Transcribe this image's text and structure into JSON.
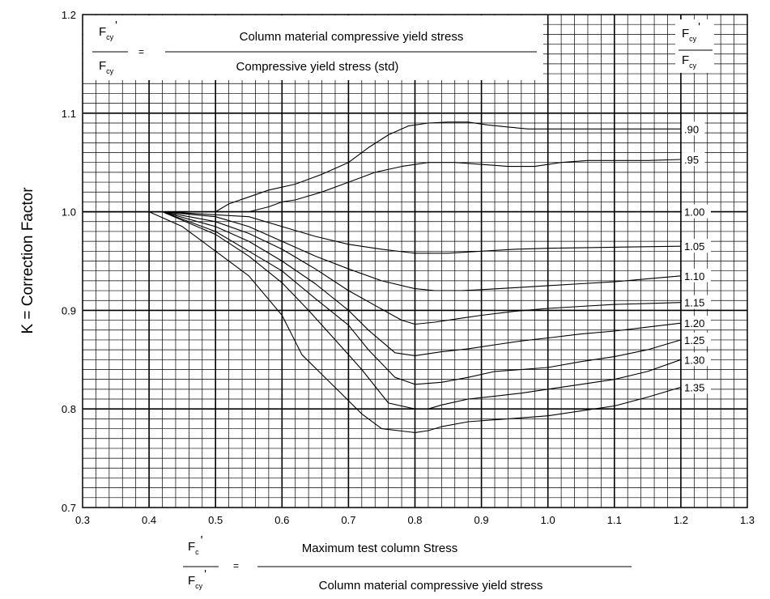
{
  "chart_data": {
    "type": "line",
    "title": "",
    "ylabel": "K = Correction Factor",
    "xlabel": "",
    "xlim": [
      0.3,
      1.3
    ],
    "ylim": [
      0.7,
      1.2
    ],
    "grid": true,
    "x_ticks": [
      "0.3",
      "0.4",
      "0.5",
      "0.6",
      "0.7",
      "0.8",
      "0.9",
      "1.0",
      "1.1",
      "1.2",
      "1.3"
    ],
    "y_ticks": [
      "0.7",
      "0.8",
      "0.9",
      "1.0",
      "1.1",
      "1.2"
    ],
    "top_formula": {
      "lhs_main": "F",
      "lhs_num_sub": "cy",
      "lhs_den_sub": "cy",
      "prime": "'",
      "equals": "=",
      "numerator": "Column material compressive yield stress",
      "denominator": "Compressive yield stress (std)"
    },
    "legend_header": {
      "main": "F",
      "num_sub": "cy",
      "den_sub": "cy",
      "prime": "'"
    },
    "bottom_formula": {
      "lhs_main": "F",
      "lhs_num_sub": "c",
      "lhs_den_sub": "cy",
      "prime": "'",
      "equals": "=",
      "numerator": "Maximum test column Stress",
      "denominator": "Column material compressive yield stress"
    },
    "series": [
      {
        "name": ".90",
        "x": [
          0.3,
          0.42,
          0.5,
          0.52,
          0.55,
          0.58,
          0.62,
          0.66,
          0.7,
          0.73,
          0.76,
          0.79,
          0.82,
          0.85,
          0.88,
          0.91,
          0.94,
          0.97,
          1.0,
          1.05,
          1.1,
          1.15,
          1.2
        ],
        "y": [
          1.0,
          1.0,
          1.0,
          1.008,
          1.015,
          1.022,
          1.028,
          1.038,
          1.05,
          1.065,
          1.078,
          1.087,
          1.09,
          1.091,
          1.091,
          1.088,
          1.086,
          1.084,
          1.084,
          1.084,
          1.084,
          1.084,
          1.084
        ]
      },
      {
        "name": ".95",
        "x": [
          0.3,
          0.42,
          0.55,
          0.58,
          0.6,
          0.62,
          0.66,
          0.7,
          0.74,
          0.78,
          0.82,
          0.86,
          0.9,
          0.94,
          0.98,
          1.02,
          1.06,
          1.1,
          1.15,
          1.2
        ],
        "y": [
          1.0,
          1.0,
          1.0,
          1.005,
          1.01,
          1.012,
          1.02,
          1.03,
          1.04,
          1.046,
          1.05,
          1.05,
          1.048,
          1.046,
          1.046,
          1.05,
          1.052,
          1.052,
          1.052,
          1.053
        ]
      },
      {
        "name": "1.00",
        "x": [
          0.3,
          1.2
        ],
        "y": [
          1.0,
          1.0
        ]
      },
      {
        "name": "1.05",
        "x": [
          0.3,
          0.42,
          0.55,
          0.6,
          0.65,
          0.7,
          0.75,
          0.8,
          0.85,
          0.9,
          0.95,
          1.0,
          1.1,
          1.2
        ],
        "y": [
          1.0,
          1.0,
          0.995,
          0.985,
          0.975,
          0.967,
          0.962,
          0.958,
          0.958,
          0.96,
          0.962,
          0.963,
          0.964,
          0.965
        ]
      },
      {
        "name": "1.10",
        "x": [
          0.3,
          0.42,
          0.5,
          0.55,
          0.6,
          0.65,
          0.7,
          0.75,
          0.8,
          0.83,
          0.87,
          0.9,
          0.95,
          1.0,
          1.05,
          1.1,
          1.15,
          1.2
        ],
        "y": [
          1.0,
          1.0,
          0.995,
          0.985,
          0.97,
          0.955,
          0.942,
          0.93,
          0.922,
          0.92,
          0.92,
          0.921,
          0.923,
          0.925,
          0.927,
          0.929,
          0.932,
          0.935
        ]
      },
      {
        "name": "1.15",
        "x": [
          0.3,
          0.42,
          0.5,
          0.55,
          0.6,
          0.65,
          0.7,
          0.74,
          0.78,
          0.8,
          0.83,
          0.87,
          0.9,
          0.95,
          1.0,
          1.05,
          1.1,
          1.15,
          1.2
        ],
        "y": [
          1.0,
          1.0,
          0.99,
          0.978,
          0.962,
          0.942,
          0.92,
          0.905,
          0.89,
          0.886,
          0.888,
          0.892,
          0.895,
          0.899,
          0.902,
          0.904,
          0.906,
          0.907,
          0.908
        ]
      },
      {
        "name": "1.20",
        "x": [
          0.3,
          0.42,
          0.5,
          0.55,
          0.6,
          0.65,
          0.7,
          0.73,
          0.77,
          0.8,
          0.84,
          0.88,
          0.92,
          0.96,
          1.0,
          1.05,
          1.1,
          1.15,
          1.2
        ],
        "y": [
          1.0,
          1.0,
          0.985,
          0.97,
          0.95,
          0.927,
          0.9,
          0.88,
          0.857,
          0.854,
          0.858,
          0.861,
          0.865,
          0.869,
          0.872,
          0.876,
          0.879,
          0.883,
          0.887
        ]
      },
      {
        "name": "1.25",
        "x": [
          0.3,
          0.42,
          0.5,
          0.55,
          0.6,
          0.65,
          0.7,
          0.73,
          0.77,
          0.8,
          0.84,
          0.88,
          0.92,
          0.96,
          1.0,
          1.05,
          1.1,
          1.15,
          1.2
        ],
        "y": [
          1.0,
          1.0,
          0.98,
          0.96,
          0.94,
          0.912,
          0.885,
          0.86,
          0.832,
          0.825,
          0.827,
          0.832,
          0.838,
          0.84,
          0.842,
          0.848,
          0.853,
          0.86,
          0.87
        ]
      },
      {
        "name": "1.30",
        "x": [
          0.3,
          0.42,
          0.5,
          0.55,
          0.6,
          0.64,
          0.68,
          0.72,
          0.76,
          0.8,
          0.82,
          0.84,
          0.88,
          0.92,
          0.96,
          1.0,
          1.05,
          1.1,
          1.15,
          1.2
        ],
        "y": [
          1.0,
          1.0,
          0.977,
          0.955,
          0.928,
          0.9,
          0.87,
          0.84,
          0.806,
          0.8,
          0.8,
          0.804,
          0.81,
          0.813,
          0.816,
          0.82,
          0.825,
          0.83,
          0.838,
          0.85
        ]
      },
      {
        "name": "1.35",
        "x": [
          0.3,
          0.4,
          0.45,
          0.5,
          0.55,
          0.6,
          0.63,
          0.66,
          0.69,
          0.72,
          0.75,
          0.8,
          0.82,
          0.84,
          0.88,
          0.92,
          0.96,
          1.0,
          1.05,
          1.1,
          1.15,
          1.2
        ],
        "y": [
          1.0,
          1.0,
          0.985,
          0.96,
          0.935,
          0.895,
          0.855,
          0.835,
          0.815,
          0.795,
          0.78,
          0.776,
          0.778,
          0.782,
          0.787,
          0.789,
          0.791,
          0.793,
          0.798,
          0.803,
          0.812,
          0.822
        ]
      }
    ]
  }
}
